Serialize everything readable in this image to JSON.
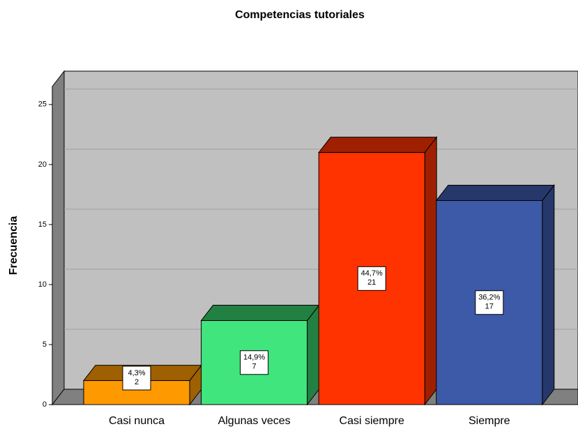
{
  "chart_data": {
    "type": "bar",
    "title": "Competencias tutoriales",
    "y_label": "Frecuencia",
    "categories": [
      "Casi nunca",
      "Algunas veces",
      "Casi siempre",
      "Siempre"
    ],
    "values": [
      2,
      7,
      21,
      17
    ],
    "percentages": [
      4.3,
      14.9,
      44.7,
      36.2
    ],
    "percentage_labels": [
      "4,3%",
      "14,9%",
      "44,7%",
      "36,2%"
    ],
    "colors": [
      "#ff9900",
      "#40e57e",
      "#ff3300",
      "#3d5aa8"
    ],
    "side_colors": [
      "#9e6000",
      "#228042",
      "#9e2000",
      "#26386b"
    ],
    "ylim": [
      0,
      26.5
    ],
    "yticks": [
      0,
      5,
      10,
      15,
      20,
      25
    ],
    "grid": true
  }
}
